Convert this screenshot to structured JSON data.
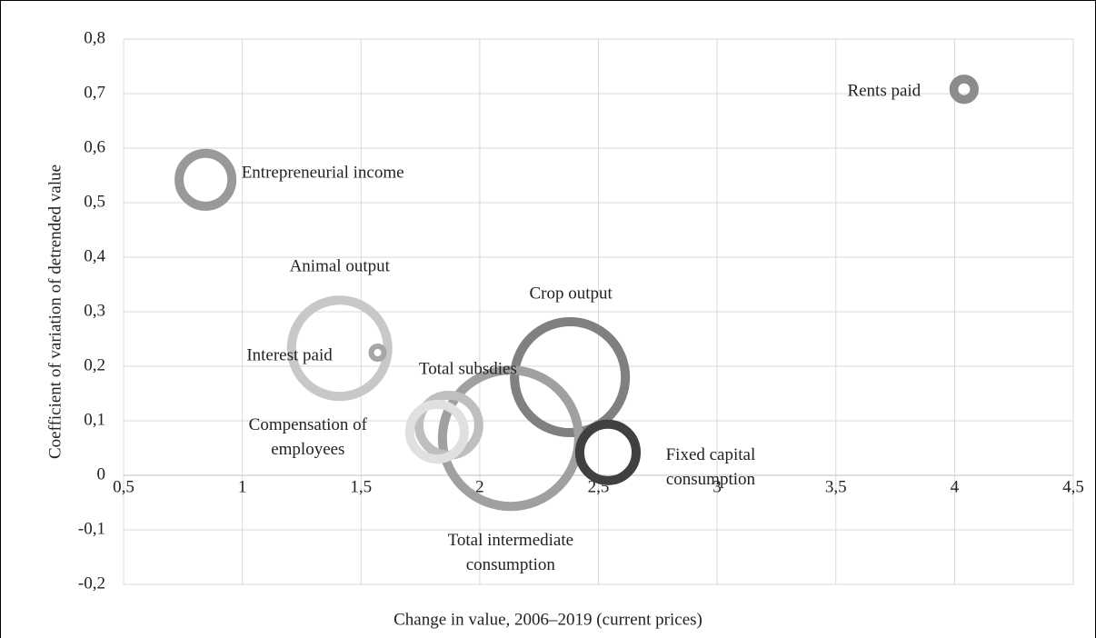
{
  "chart_data": {
    "type": "bubble",
    "x_label": "Change in value, 2006–2019 (current prices)",
    "y_label": "Coefficient of variation of detrended value",
    "xlim": [
      0.5,
      4.5
    ],
    "xticks": [
      {
        "value": 0.5,
        "label": "0,5"
      },
      1,
      {
        "value": 1.5,
        "label": "1,5"
      },
      2,
      {
        "value": 2.5,
        "label": "2,5"
      },
      3,
      {
        "value": 3.5,
        "label": "3,5"
      },
      4,
      {
        "value": 4.5,
        "label": "4,5"
      }
    ],
    "ylim": [
      -0.2,
      0.8
    ],
    "yticks": [
      {
        "value": 0.8,
        "label": "0,8"
      },
      {
        "value": 0.7,
        "label": "0,7"
      },
      {
        "value": 0.6,
        "label": "0,6"
      },
      {
        "value": 0.5,
        "label": "0,5"
      },
      {
        "value": 0.4,
        "label": "0,4"
      },
      {
        "value": 0.3,
        "label": "0,3"
      },
      {
        "value": 0.2,
        "label": "0,2"
      },
      {
        "value": 0.1,
        "label": "0,1"
      },
      0,
      {
        "value": -0.1,
        "label": "-0,1"
      },
      {
        "value": -0.2,
        "label": "-0,2"
      }
    ],
    "grid": true,
    "points": [
      {
        "name": "Rents paid",
        "x": 4.04,
        "y": 0.708,
        "size": 2.6,
        "color": "#8c8c8c"
      },
      {
        "name": "Entrepreneurial income",
        "x": 0.845,
        "y": 0.542,
        "size": 11.6,
        "color": "#999999"
      },
      {
        "name": "Animal output",
        "x": 1.41,
        "y": 0.233,
        "size": 33.6,
        "color": "#c8c8c8"
      },
      {
        "name": "Interest paid",
        "x": 1.57,
        "y": 0.225,
        "size": 1.0,
        "color": "#a6a6a6"
      },
      {
        "name": "Crop output",
        "x": 2.38,
        "y": 0.18,
        "size": 43.6,
        "color": "#808080"
      },
      {
        "name": "Total intermediate consumption",
        "x": 2.13,
        "y": 0.068,
        "size": 64,
        "color": "#a0a0a0"
      },
      {
        "name": "Total subsdies",
        "x": 1.87,
        "y": 0.092,
        "size": 14.4,
        "color": "#bfbfbf"
      },
      {
        "name": "Compensation of employees",
        "x": 1.82,
        "y": 0.08,
        "size": 12.3,
        "color": "#e0e0e0"
      },
      {
        "name": "Fixed capital consumption",
        "x": 2.54,
        "y": 0.042,
        "size": 13,
        "color": "#404040"
      }
    ]
  }
}
